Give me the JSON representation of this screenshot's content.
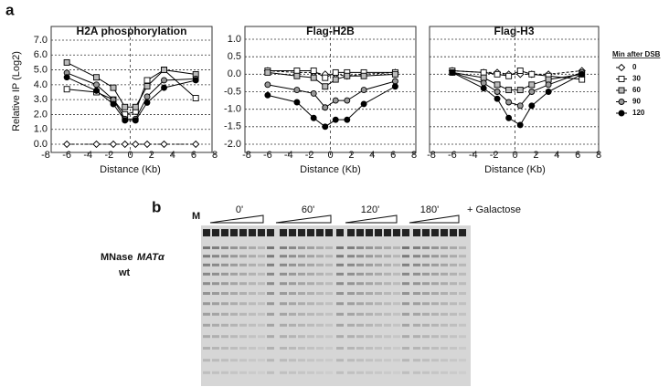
{
  "figure": {
    "panel_a": "a",
    "panel_b": "b"
  },
  "chart_data": [
    {
      "type": "line",
      "title": "H2A phosphorylation",
      "x_label": "Distance (Kb)",
      "y_label": "Relative IP (Log2)",
      "xlim": [
        -8,
        8
      ],
      "xticks": [
        -8,
        -6,
        -4,
        -2,
        0,
        2,
        4,
        6,
        8
      ],
      "ylim": [
        0,
        7
      ],
      "yticks": [
        {
          "value": 0,
          "label": "0.0"
        },
        {
          "value": 1,
          "label": "1.0"
        },
        {
          "value": 2,
          "label": "2.0"
        },
        {
          "value": 3,
          "label": "3.0"
        },
        {
          "value": 4,
          "label": "4.0"
        },
        {
          "value": 5,
          "label": "5.0"
        },
        {
          "value": 6,
          "label": "6.0"
        },
        {
          "value": 7,
          "label": "7.0"
        }
      ],
      "ytick_labels": true,
      "grid": true,
      "vline_x": 0,
      "x": [
        -6,
        -3.2,
        -1.6,
        -0.5,
        0.5,
        1.6,
        3.2,
        6.2
      ],
      "series": [
        {
          "color": "#ffffff",
          "marker": "diamond",
          "dashed": true,
          "values": [
            0,
            0,
            0,
            0,
            0,
            0,
            0,
            0
          ]
        },
        {
          "color": "#ffffff",
          "marker": "square",
          "dashed": false,
          "values": [
            3.7,
            3.5,
            3.0,
            2.0,
            2.2,
            4.3,
            5.0,
            3.1
          ]
        },
        {
          "color": "#bbbbbb",
          "marker": "square",
          "dashed": false,
          "values": [
            5.5,
            4.5,
            3.8,
            2.5,
            2.5,
            3.9,
            5.0,
            4.7
          ]
        },
        {
          "color": "#999999",
          "marker": "circle",
          "dashed": false,
          "values": [
            4.8,
            4.0,
            3.0,
            1.7,
            1.7,
            3.2,
            4.3,
            4.4
          ]
        },
        {
          "color": "#000000",
          "marker": "circle",
          "dashed": false,
          "values": [
            4.5,
            3.6,
            2.7,
            1.6,
            1.6,
            2.8,
            3.8,
            4.3
          ]
        }
      ]
    },
    {
      "type": "line",
      "title": "Flag-H2B",
      "x_label": "Distance (Kb)",
      "xlim": [
        -8,
        8
      ],
      "xticks": [
        -8,
        -6,
        -4,
        -2,
        0,
        2,
        4,
        6,
        8
      ],
      "ylim": [
        -2,
        1
      ],
      "yticks": [
        {
          "value": -2,
          "label": "-2.0"
        },
        -1.5,
        {
          "value": -1,
          "label": "-1.0"
        },
        -0.5,
        {
          "value": 0,
          "label": "0.0"
        },
        0.5,
        {
          "value": 1,
          "label": "1.0"
        }
      ],
      "ytick_labels": true,
      "grid": true,
      "vline_x": 0,
      "x": [
        -6,
        -3.2,
        -1.6,
        -0.5,
        0.5,
        1.6,
        3.2,
        6.2
      ],
      "series": [
        {
          "color": "#ffffff",
          "marker": "diamond",
          "dashed": true,
          "values": [
            0.1,
            0.05,
            0.05,
            0,
            0,
            -0.05,
            0,
            0.05
          ]
        },
        {
          "color": "#ffffff",
          "marker": "square",
          "dashed": false,
          "values": [
            0.1,
            0.1,
            0.1,
            -0.1,
            0.05,
            0.05,
            0.05,
            0.05
          ]
        },
        {
          "color": "#bbbbbb",
          "marker": "square",
          "dashed": false,
          "values": [
            0.05,
            -0.05,
            -0.1,
            -0.35,
            -0.15,
            -0.05,
            -0.05,
            0
          ]
        },
        {
          "color": "#999999",
          "marker": "circle",
          "dashed": false,
          "values": [
            -0.3,
            -0.45,
            -0.55,
            -0.95,
            -0.75,
            -0.75,
            -0.45,
            -0.2
          ]
        },
        {
          "color": "#000000",
          "marker": "circle",
          "dashed": false,
          "values": [
            -0.6,
            -0.8,
            -1.25,
            -1.5,
            -1.3,
            -1.3,
            -0.85,
            -0.35
          ]
        }
      ]
    },
    {
      "type": "line",
      "title": "Flag-H3",
      "x_label": "Distance (Kb)",
      "xlim": [
        -8,
        8
      ],
      "xticks": [
        -8,
        -6,
        -4,
        -2,
        0,
        2,
        4,
        6,
        8
      ],
      "ylim": [
        -2,
        1
      ],
      "yticks": [
        -2,
        -1.5,
        -1,
        -0.5,
        0,
        0.5,
        1
      ],
      "ytick_labels": false,
      "grid": true,
      "vline_x": 0,
      "legend_title": "Min after DSB",
      "x": [
        -6,
        -3,
        -1.7,
        -0.6,
        0.5,
        1.6,
        3.2,
        6.4
      ],
      "series": [
        {
          "name": "0",
          "color": "#ffffff",
          "marker": "diamond",
          "dashed": true,
          "values": [
            0.1,
            0.05,
            0.05,
            0,
            0,
            0,
            0,
            0.1
          ]
        },
        {
          "name": "30",
          "color": "#ffffff",
          "marker": "square",
          "dashed": false,
          "values": [
            0.1,
            0.05,
            0,
            -0.05,
            0.1,
            0,
            -0.05,
            -0.15
          ]
        },
        {
          "name": "60",
          "color": "#bbbbbb",
          "marker": "square",
          "dashed": false,
          "values": [
            0.05,
            -0.1,
            -0.3,
            -0.45,
            -0.45,
            -0.3,
            -0.15,
            0
          ]
        },
        {
          "name": "90",
          "color": "#999999",
          "marker": "circle",
          "dashed": false,
          "values": [
            0.05,
            -0.25,
            -0.5,
            -0.8,
            -0.9,
            -0.5,
            -0.3,
            0.05
          ]
        },
        {
          "name": "120",
          "color": "#000000",
          "marker": "circle",
          "dashed": false,
          "values": [
            0.05,
            -0.4,
            -0.7,
            -1.25,
            -1.45,
            -0.9,
            -0.5,
            0
          ]
        }
      ]
    }
  ],
  "gel": {
    "marker_lane": "M",
    "time_labels": [
      "0'",
      "60'",
      "120'",
      "180'"
    ],
    "treatment": "+ Galactose",
    "sample_label": [
      "MNase",
      "MATα"
    ],
    "strain": "wt"
  }
}
